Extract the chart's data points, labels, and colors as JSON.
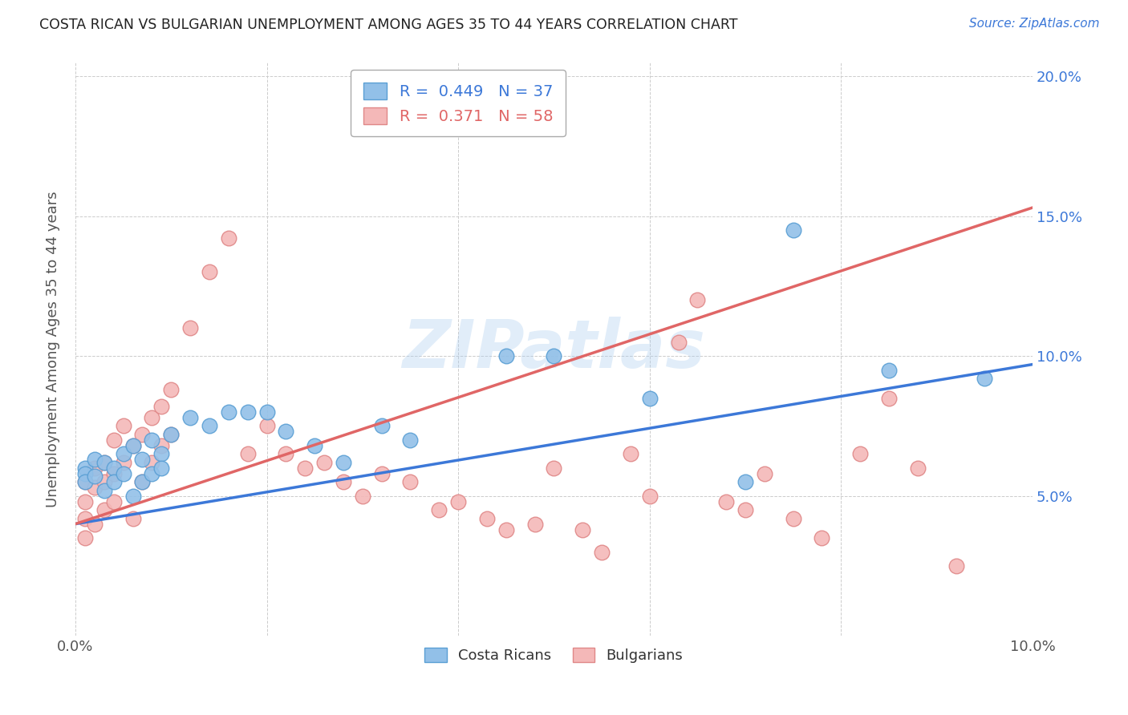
{
  "title": "COSTA RICAN VS BULGARIAN UNEMPLOYMENT AMONG AGES 35 TO 44 YEARS CORRELATION CHART",
  "source": "Source: ZipAtlas.com",
  "ylabel": "Unemployment Among Ages 35 to 44 years",
  "xlim": [
    0.0,
    0.1
  ],
  "ylim": [
    0.0,
    0.205
  ],
  "xticks": [
    0.0,
    0.02,
    0.04,
    0.06,
    0.08,
    0.1
  ],
  "yticks": [
    0.0,
    0.05,
    0.1,
    0.15,
    0.2
  ],
  "xtick_labels_show": [
    "0.0%",
    "10.0%"
  ],
  "ytick_labels": [
    "",
    "5.0%",
    "10.0%",
    "15.0%",
    "20.0%"
  ],
  "costa_rica_R": 0.449,
  "costa_rica_N": 37,
  "bulgaria_R": 0.371,
  "bulgaria_N": 58,
  "blue_color": "#92c0e8",
  "pink_color": "#f4b8b8",
  "blue_line_color": "#3c78d8",
  "pink_line_color": "#e06666",
  "blue_edge_color": "#5a9fd4",
  "pink_edge_color": "#e08888",
  "watermark": "ZIPatlas",
  "blue_scatter_x": [
    0.001,
    0.001,
    0.001,
    0.002,
    0.002,
    0.003,
    0.003,
    0.004,
    0.004,
    0.005,
    0.005,
    0.006,
    0.006,
    0.007,
    0.007,
    0.008,
    0.008,
    0.009,
    0.009,
    0.01,
    0.012,
    0.014,
    0.016,
    0.018,
    0.02,
    0.022,
    0.025,
    0.028,
    0.032,
    0.035,
    0.045,
    0.05,
    0.06,
    0.07,
    0.075,
    0.085,
    0.095
  ],
  "blue_scatter_y": [
    0.06,
    0.058,
    0.055,
    0.063,
    0.057,
    0.062,
    0.052,
    0.06,
    0.055,
    0.065,
    0.058,
    0.068,
    0.05,
    0.063,
    0.055,
    0.07,
    0.058,
    0.065,
    0.06,
    0.072,
    0.078,
    0.075,
    0.08,
    0.08,
    0.08,
    0.073,
    0.068,
    0.062,
    0.075,
    0.07,
    0.1,
    0.1,
    0.085,
    0.055,
    0.145,
    0.095,
    0.092
  ],
  "pink_scatter_x": [
    0.001,
    0.001,
    0.001,
    0.001,
    0.002,
    0.002,
    0.002,
    0.003,
    0.003,
    0.003,
    0.004,
    0.004,
    0.004,
    0.005,
    0.005,
    0.006,
    0.006,
    0.007,
    0.007,
    0.008,
    0.008,
    0.009,
    0.009,
    0.01,
    0.01,
    0.012,
    0.014,
    0.016,
    0.018,
    0.02,
    0.022,
    0.024,
    0.026,
    0.028,
    0.03,
    0.032,
    0.035,
    0.038,
    0.04,
    0.043,
    0.045,
    0.048,
    0.05,
    0.053,
    0.055,
    0.058,
    0.06,
    0.063,
    0.065,
    0.068,
    0.07,
    0.072,
    0.075,
    0.078,
    0.082,
    0.085,
    0.088,
    0.092
  ],
  "pink_scatter_y": [
    0.055,
    0.048,
    0.042,
    0.035,
    0.06,
    0.053,
    0.04,
    0.062,
    0.055,
    0.045,
    0.07,
    0.058,
    0.048,
    0.075,
    0.062,
    0.068,
    0.042,
    0.072,
    0.055,
    0.078,
    0.062,
    0.082,
    0.068,
    0.088,
    0.072,
    0.11,
    0.13,
    0.142,
    0.065,
    0.075,
    0.065,
    0.06,
    0.062,
    0.055,
    0.05,
    0.058,
    0.055,
    0.045,
    0.048,
    0.042,
    0.038,
    0.04,
    0.06,
    0.038,
    0.03,
    0.065,
    0.05,
    0.105,
    0.12,
    0.048,
    0.045,
    0.058,
    0.042,
    0.035,
    0.065,
    0.085,
    0.06,
    0.025
  ]
}
